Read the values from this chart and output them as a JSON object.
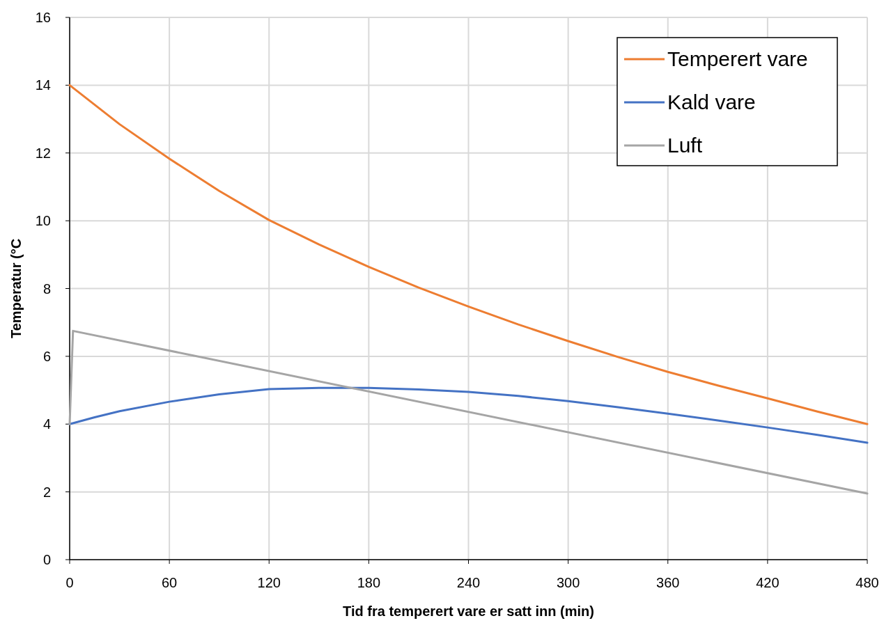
{
  "chart_data": {
    "type": "line",
    "xlabel": "Tid fra temperert vare er satt inn (min)",
    "ylabel": "Temperatur (°C",
    "xlim": [
      0,
      480
    ],
    "xticks": [
      0,
      60,
      120,
      180,
      240,
      300,
      360,
      420,
      480
    ],
    "ylim": [
      0,
      16
    ],
    "yticks": [
      0,
      2,
      4,
      6,
      8,
      10,
      12,
      14,
      16
    ],
    "grid": true,
    "legend": "top right",
    "line_style": "solid",
    "marker": "none",
    "series": [
      {
        "name": "Temperert vare",
        "color": "#ed7d31",
        "x": [
          0,
          30,
          60,
          90,
          120,
          150,
          180,
          210,
          240,
          270,
          300,
          330,
          360,
          390,
          420,
          450,
          480
        ],
        "values": [
          14,
          12.85,
          11.83,
          10.88,
          10.02,
          9.3,
          8.64,
          8.03,
          7.47,
          6.94,
          6.45,
          5.98,
          5.54,
          5.14,
          4.76,
          4.37,
          4.0
        ]
      },
      {
        "name": "Kald vare",
        "color": "#4472c4",
        "x": [
          0,
          15,
          30,
          60,
          90,
          120,
          150,
          180,
          210,
          240,
          270,
          300,
          330,
          360,
          390,
          420,
          450,
          480
        ],
        "values": [
          4,
          4.2,
          4.38,
          4.66,
          4.88,
          5.03,
          5.07,
          5.07,
          5.02,
          4.95,
          4.83,
          4.68,
          4.5,
          4.31,
          4.11,
          3.9,
          3.68,
          3.45
        ]
      },
      {
        "name": "Luft",
        "color": "#a5a5a5",
        "x": [
          0,
          2,
          480
        ],
        "values": [
          4,
          6.75,
          1.95
        ]
      }
    ]
  }
}
